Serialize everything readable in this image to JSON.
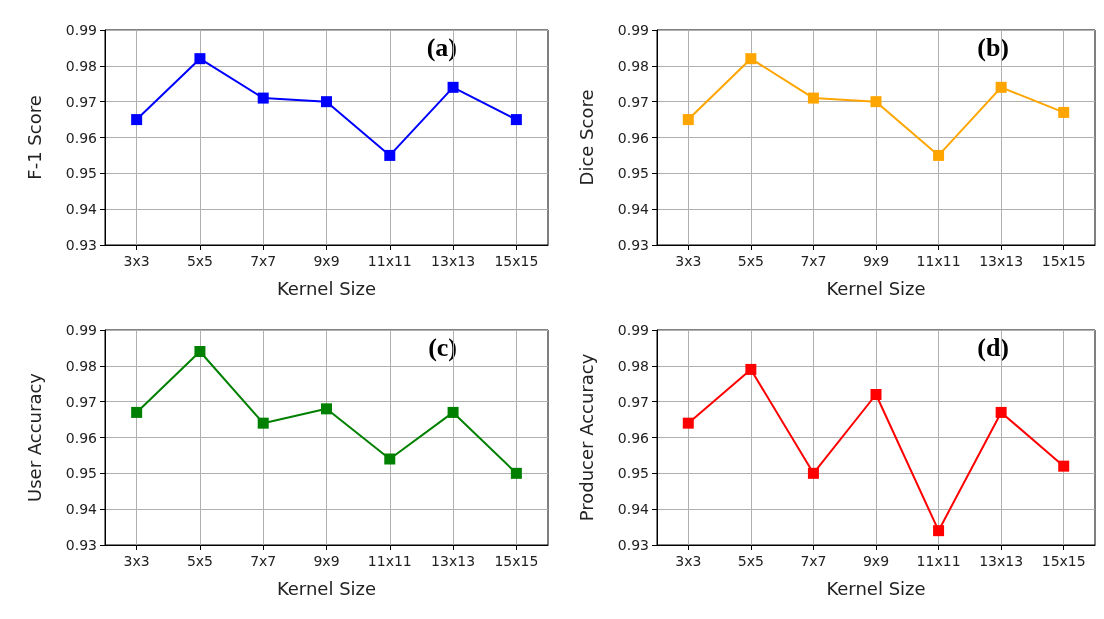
{
  "chart_data": [
    {
      "type": "line",
      "xlabel": "Kernel Size",
      "ylabel": "F-1 Score",
      "annotations": [
        "(a)"
      ],
      "categories": [
        "3x3",
        "5x5",
        "7x7",
        "9x9",
        "11x11",
        "13x13",
        "15x15"
      ],
      "series": [
        {
          "color": "#0000ff",
          "values": [
            0.965,
            0.982,
            0.971,
            0.97,
            0.955,
            0.974,
            0.965
          ]
        }
      ],
      "ylim": [
        0.93,
        0.99
      ],
      "yticks": [
        0.93,
        0.94,
        0.95,
        0.96,
        0.97,
        0.98,
        0.99
      ],
      "grid": true,
      "marker": "square",
      "line_style": "solid"
    },
    {
      "type": "line",
      "xlabel": "Kernel Size",
      "ylabel": "Dice Score",
      "annotations": [
        "(b)"
      ],
      "categories": [
        "3x3",
        "5x5",
        "7x7",
        "9x9",
        "11x11",
        "13x13",
        "15x15"
      ],
      "series": [
        {
          "color": "#ffa500",
          "values": [
            0.965,
            0.982,
            0.971,
            0.97,
            0.955,
            0.974,
            0.967
          ]
        }
      ],
      "ylim": [
        0.93,
        0.99
      ],
      "yticks": [
        0.93,
        0.94,
        0.95,
        0.96,
        0.97,
        0.98,
        0.99
      ],
      "grid": true,
      "marker": "square",
      "line_style": "solid"
    },
    {
      "type": "line",
      "xlabel": "Kernel Size",
      "ylabel": "User Accuracy",
      "annotations": [
        "(c)"
      ],
      "categories": [
        "3x3",
        "5x5",
        "7x7",
        "9x9",
        "11x11",
        "13x13",
        "15x15"
      ],
      "series": [
        {
          "color": "#008000",
          "values": [
            0.967,
            0.984,
            0.964,
            0.968,
            0.954,
            0.967,
            0.95
          ]
        }
      ],
      "ylim": [
        0.93,
        0.99
      ],
      "yticks": [
        0.93,
        0.94,
        0.95,
        0.96,
        0.97,
        0.98,
        0.99
      ],
      "grid": true,
      "marker": "square",
      "line_style": "solid"
    },
    {
      "type": "line",
      "xlabel": "Kernel Size",
      "ylabel": "Producer Accuracy",
      "annotations": [
        "(d)"
      ],
      "categories": [
        "3x3",
        "5x5",
        "7x7",
        "9x9",
        "11x11",
        "13x13",
        "15x15"
      ],
      "series": [
        {
          "color": "#ff0000",
          "values": [
            0.964,
            0.979,
            0.95,
            0.972,
            0.934,
            0.967,
            0.952
          ]
        }
      ],
      "ylim": [
        0.93,
        0.99
      ],
      "yticks": [
        0.93,
        0.94,
        0.95,
        0.96,
        0.97,
        0.98,
        0.99
      ],
      "grid": true,
      "marker": "square",
      "line_style": "solid"
    }
  ]
}
